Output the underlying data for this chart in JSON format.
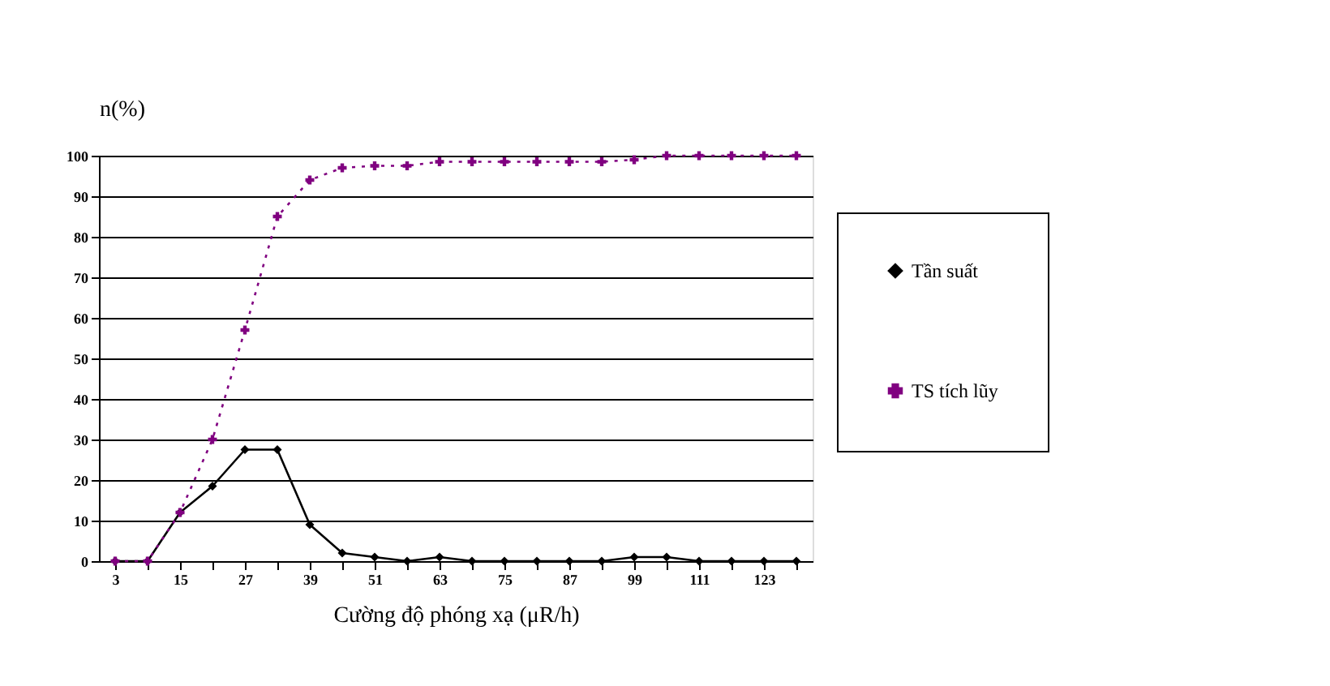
{
  "chart_data": {
    "type": "line",
    "ylabel": "n(%)",
    "xlabel": "Cường độ phóng xạ (μR/h)",
    "categories": [
      "3",
      null,
      "15",
      null,
      "27",
      null,
      "39",
      null,
      "51",
      null,
      "63",
      null,
      "75",
      null,
      "87",
      null,
      "99",
      null,
      "111",
      null,
      "123",
      null
    ],
    "series": [
      {
        "name": "Tần suất",
        "color": "#000000",
        "marker": "diamond",
        "line_style": "solid",
        "values": [
          0,
          0,
          12,
          18.5,
          27.5,
          27.5,
          9,
          2,
          1,
          0,
          1,
          0,
          0,
          0,
          0,
          0,
          1,
          1,
          0,
          0,
          0,
          0
        ]
      },
      {
        "name": "TS tích lũy",
        "color": "#800080",
        "marker": "cross",
        "line_style": "dotted",
        "values": [
          0,
          0,
          12,
          30,
          57,
          85,
          94,
          97,
          97.5,
          97.5,
          98.5,
          98.5,
          98.5,
          98.5,
          98.5,
          98.5,
          99,
          100,
          100,
          100,
          100,
          100
        ]
      }
    ],
    "ylim": [
      0,
      100
    ],
    "yticks": [
      0,
      10,
      20,
      30,
      40,
      50,
      60,
      70,
      80,
      90,
      100
    ],
    "grid": "y",
    "legend": "right"
  }
}
